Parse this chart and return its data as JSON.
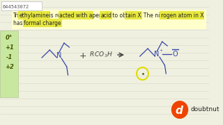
{
  "id_text": "644543072",
  "bg_color": "#f0f0e0",
  "paper_line_color": "#d8d8c8",
  "yellow_bg": "#ffffc0",
  "answer_panel_color": "#c8e8a0",
  "answer_panel_border": "#aabb88",
  "highlight_color": "#e8e840",
  "text_dark": "#222222",
  "blue": "#3344aa",
  "gray_text": "#444444",
  "answer_options": [
    "0°",
    "+1",
    "-1",
    "+2"
  ],
  "doubtnut_orange": "#ee4400",
  "doubtnut_red": "#cc2200",
  "line1": "Tri ethylamine is re acted with a per acid to ob tain X . The nit rogen atom in X",
  "line2": "has formal charge .",
  "id_box_color": "#ffffff",
  "yellow_circle_color": "#dddd00"
}
